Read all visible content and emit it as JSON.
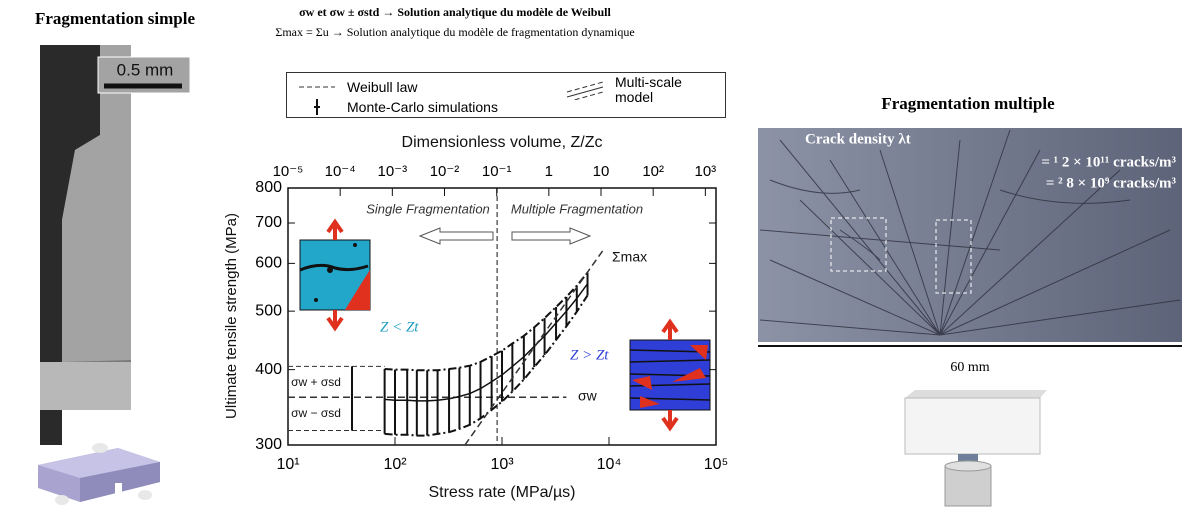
{
  "header": {
    "line1": "σw et σw ± σstd → Solution analytique du modèle de Weibull",
    "line2": "Σmax = Σu → Solution analytique du modèle de fragmentation dynamique"
  },
  "left": {
    "title": "Fragmentation simple",
    "scale": "0.5 mm"
  },
  "right": {
    "title": "Fragmentation multiple",
    "density_label": "Crack density λt",
    "density_1": "= ¹ 2 × 10¹¹ cracks/m³",
    "density_2": "= ² 8 × 10⁹ cracks/m³",
    "scale": "60 mm"
  },
  "chart_data": {
    "type": "line",
    "xlabel": "Stress rate (MPa/µs)",
    "ylabel": "Ultimate tensile strength (MPa)",
    "x2label": "Dimensionless volume, Z/Zc",
    "xscale": "log",
    "yscale": "log",
    "xlim": [
      10,
      100000
    ],
    "xticks": [
      {
        "value": 10,
        "label": "10¹"
      },
      {
        "value": 100,
        "label": "10²"
      },
      {
        "value": 1000,
        "label": "10³"
      },
      {
        "value": 10000,
        "label": "10⁴"
      },
      {
        "value": 100000,
        "label": "10⁵"
      }
    ],
    "x2lim": [
      1e-05,
      1600
    ],
    "x2ticks": [
      {
        "value": 1e-05,
        "label": "10⁻⁵"
      },
      {
        "value": 0.0001,
        "label": "10⁻⁴"
      },
      {
        "value": 0.001,
        "label": "10⁻³"
      },
      {
        "value": 0.01,
        "label": "10⁻²"
      },
      {
        "value": 0.1,
        "label": "10⁻¹"
      },
      1,
      10,
      {
        "value": 100,
        "label": "10²"
      },
      {
        "value": 1000,
        "label": "10³"
      }
    ],
    "ylim": [
      300,
      800
    ],
    "yticks": [
      300,
      400,
      500,
      600,
      700,
      800
    ],
    "vline": 900,
    "sd_lines": [
      405,
      317
    ],
    "annotations": [
      "Single Fragmentation",
      "Multiple Fragmentation",
      "Σmax",
      "σw",
      "σw + σsd",
      "σw − σsd",
      "Z < Zt",
      "Z > Zt"
    ],
    "series": [
      {
        "name": "Weibull law",
        "color": "#333333",
        "dash": "dashed",
        "x": [
          10,
          4000
        ],
        "values": [
          360,
          360
        ]
      },
      {
        "name": "Monte-Carlo simulations",
        "color": "#111111",
        "x": [
          80,
          100,
          130,
          160,
          200,
          250,
          320,
          400,
          500,
          630,
          800,
          1000,
          1250,
          1600,
          2000,
          2500,
          3200,
          4000,
          5000,
          6300
        ],
        "values": [
          357,
          356,
          356,
          355,
          355,
          356,
          358,
          361,
          365,
          372,
          382,
          392,
          405,
          420,
          437,
          455,
          478,
          500,
          525,
          555
        ],
        "errors": [
          44,
          44,
          44,
          44,
          44,
          43,
          43,
          42,
          41,
          40,
          39,
          38,
          37,
          35,
          33,
          32,
          30,
          28,
          26,
          24
        ]
      },
      {
        "name": "Multi-scale model",
        "color": "#333333",
        "dash": "dashed",
        "x": [
          450,
          9100
        ],
        "values": [
          300,
          636
        ]
      }
    ]
  }
}
